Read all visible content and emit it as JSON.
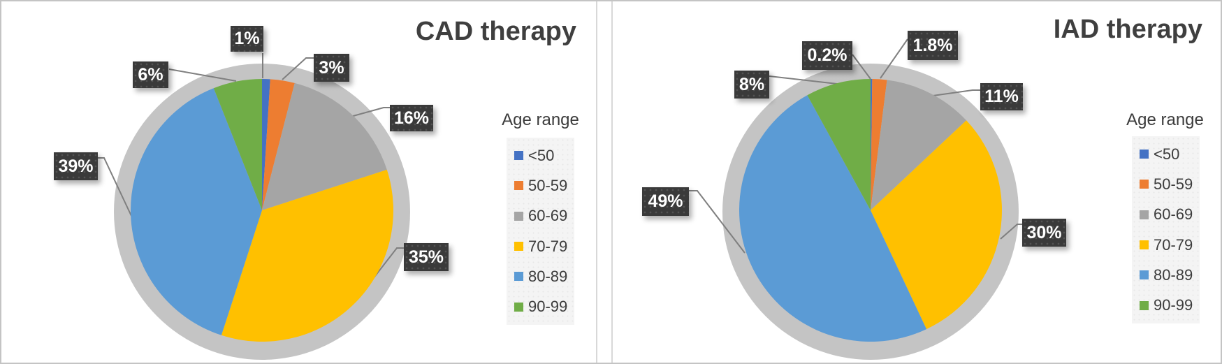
{
  "chart_data": [
    {
      "type": "pie",
      "title": "CAD therapy",
      "legend_title": "Age range",
      "legend_position": "right",
      "start_angle_deg": 0,
      "direction": "clockwise",
      "categories": [
        "<50",
        "50-59",
        "60-69",
        "70-79",
        "80-89",
        "90-99"
      ],
      "values": [
        1,
        3,
        16,
        35,
        39,
        6
      ],
      "labels": [
        "1%",
        "3%",
        "16%",
        "35%",
        "39%",
        "6%"
      ],
      "colors": [
        "#4472C4",
        "#ED7D31",
        "#A5A5A5",
        "#FFC000",
        "#5B9BD5",
        "#70AD47"
      ],
      "label_style": {
        "background": "#3a3a3a",
        "text_color": "#ffffff"
      }
    },
    {
      "type": "pie",
      "title": "IAD therapy",
      "legend_title": "Age range",
      "legend_position": "right",
      "start_angle_deg": 0,
      "direction": "clockwise",
      "categories": [
        "<50",
        "50-59",
        "60-69",
        "70-79",
        "80-89",
        "90-99"
      ],
      "values": [
        0.2,
        1.8,
        11,
        30,
        49,
        8
      ],
      "labels": [
        "0.2%",
        "1.8%",
        "11%",
        "30%",
        "49%",
        "8%"
      ],
      "colors": [
        "#4472C4",
        "#ED7D31",
        "#A5A5A5",
        "#FFC000",
        "#5B9BD5",
        "#70AD47"
      ],
      "label_style": {
        "background": "#3a3a3a",
        "text_color": "#ffffff"
      }
    }
  ]
}
